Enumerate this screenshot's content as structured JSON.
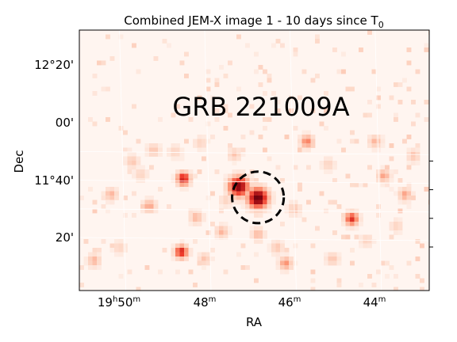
{
  "chart_data": {
    "type": "heatmap",
    "title": "Combined JEM-X image 1 - 10 days since T",
    "title_sub": "0",
    "xlabel": "RA",
    "ylabel": "Dec",
    "annotation": "GRB 221009A",
    "x_ticks": [
      {
        "h": "19",
        "hs": "h",
        "m": "50",
        "ms": "m"
      },
      {
        "m": "48",
        "ms": "m"
      },
      {
        "m": "46",
        "ms": "m"
      },
      {
        "m": "44",
        "ms": "m"
      }
    ],
    "y_ticks": [
      "12°20'",
      "00'",
      "11°40'",
      "20'"
    ],
    "colormap": [
      "#fff5f0",
      "#fdd4c2",
      "#fc9272",
      "#ef3b2c",
      "#a50f15",
      "#67000d"
    ],
    "source": {
      "ra_min": 46.75,
      "dec_arcmin": 48,
      "circle_radius_arcmin": 9
    },
    "grid": true,
    "hotspots": [
      {
        "ra_min": 46.75,
        "dec_arcmin": 47.5,
        "intensity": 1.0
      },
      {
        "ra_min": 47.2,
        "dec_arcmin": 55.5,
        "intensity": 0.9
      },
      {
        "ra_min": 48.5,
        "dec_arcmin": 61,
        "intensity": 0.75
      },
      {
        "ra_min": 48.55,
        "dec_arcmin": 10,
        "intensity": 0.7
      },
      {
        "ra_min": 44.55,
        "dec_arcmin": 33,
        "intensity": 0.65
      },
      {
        "ra_min": 46.1,
        "dec_arcmin": 2,
        "intensity": 0.4
      },
      {
        "ra_min": 45.6,
        "dec_arcmin": 87,
        "intensity": 0.45
      },
      {
        "ra_min": 43.8,
        "dec_arcmin": 63,
        "intensity": 0.35
      },
      {
        "ra_min": 43.3,
        "dec_arcmin": 50,
        "intensity": 0.35
      },
      {
        "ra_min": 49.3,
        "dec_arcmin": 42,
        "intensity": 0.35
      },
      {
        "ra_min": 50.2,
        "dec_arcmin": 50,
        "intensity": 0.3
      },
      {
        "ra_min": 49.7,
        "dec_arcmin": 73,
        "intensity": 0.25
      },
      {
        "ra_min": 49.2,
        "dec_arcmin": 81,
        "intensity": 0.25
      },
      {
        "ra_min": 48.7,
        "dec_arcmin": 80,
        "intensity": 0.2
      },
      {
        "ra_min": 47.3,
        "dec_arcmin": 78,
        "intensity": 0.25
      },
      {
        "ra_min": 43.1,
        "dec_arcmin": 77,
        "intensity": 0.25
      },
      {
        "ra_min": 48.2,
        "dec_arcmin": 34,
        "intensity": 0.3
      },
      {
        "ra_min": 46.75,
        "dec_arcmin": 22,
        "intensity": 0.3
      },
      {
        "ra_min": 45.0,
        "dec_arcmin": 5,
        "intensity": 0.25
      },
      {
        "ra_min": 50.6,
        "dec_arcmin": 4,
        "intensity": 0.3
      },
      {
        "ra_min": 48.0,
        "dec_arcmin": 5,
        "intensity": 0.25
      },
      {
        "ra_min": 50.0,
        "dec_arcmin": 13,
        "intensity": 0.2
      },
      {
        "ra_min": 44.2,
        "dec_arcmin": 18,
        "intensity": 0.2
      },
      {
        "ra_min": 46.3,
        "dec_arcmin": 13,
        "intensity": 0.25
      },
      {
        "ra_min": 43.5,
        "dec_arcmin": 28,
        "intensity": 0.2
      },
      {
        "ra_min": 47.6,
        "dec_arcmin": 24,
        "intensity": 0.3
      },
      {
        "ra_min": 49.5,
        "dec_arcmin": 64,
        "intensity": 0.2
      },
      {
        "ra_min": 45.9,
        "dec_arcmin": 40,
        "intensity": 0.25
      },
      {
        "ra_min": 44.0,
        "dec_arcmin": 87,
        "intensity": 0.3
      },
      {
        "ra_min": 48.1,
        "dec_arcmin": 86,
        "intensity": 0.2
      },
      {
        "ra_min": 45.1,
        "dec_arcmin": 71,
        "intensity": 0.2
      },
      {
        "ra_min": 47.5,
        "dec_arcmin": 46,
        "intensity": 0.2
      }
    ]
  }
}
